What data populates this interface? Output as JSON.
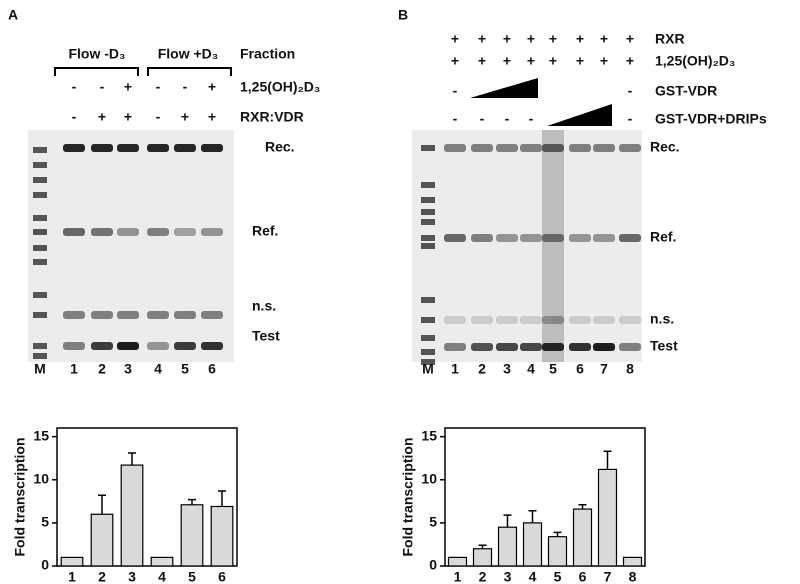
{
  "panels": [
    {
      "letter": "A",
      "headers": [
        "Flow -D₃",
        "Flow +D₃"
      ],
      "fraction_label": "Fraction",
      "rows": [
        {
          "label": "1,25(OH)₂D₃",
          "marks": [
            "-",
            "-",
            "+",
            "-",
            "-",
            "+"
          ]
        },
        {
          "label": "RXR:VDR",
          "marks": [
            "-",
            "+",
            "+",
            "-",
            "+",
            "+"
          ]
        }
      ],
      "bands": [
        "Rec.",
        "Ref.",
        "n.s.",
        "Test"
      ],
      "lane_labels": [
        "M",
        "1",
        "2",
        "3",
        "4",
        "5",
        "6"
      ]
    },
    {
      "letter": "B",
      "rows": [
        {
          "label": "RXR",
          "marks": [
            "+",
            "+",
            "+",
            "+",
            "+",
            "+",
            "+",
            "+"
          ]
        },
        {
          "label": "1,25(OH)₂D₃",
          "marks": [
            "+",
            "+",
            "+",
            "+",
            "+",
            "+",
            "+",
            "+"
          ]
        },
        {
          "label": "GST-VDR",
          "marks": [
            "-",
            "-"
          ]
        },
        {
          "label": "GST-VDR+DRIPs",
          "marks": [
            "-",
            "-",
            "-",
            "-",
            "-"
          ]
        }
      ],
      "bands": [
        "Rec.",
        "Ref.",
        "n.s.",
        "Test"
      ],
      "lane_labels": [
        "M",
        "1",
        "2",
        "3",
        "4",
        "5",
        "6",
        "7",
        "8"
      ]
    }
  ],
  "chart_data": [
    {
      "type": "bar",
      "y_label": "Fold transcription",
      "categories": [
        "1",
        "2",
        "3",
        "4",
        "5",
        "6"
      ],
      "values": [
        1,
        6,
        11.7,
        1,
        7.1,
        6.9
      ],
      "errors": [
        0,
        2.2,
        1.4,
        0,
        0.6,
        1.8
      ],
      "ylim": [
        0,
        16
      ],
      "yticks": [
        0,
        5,
        10,
        15
      ],
      "color": "#d9d9d9"
    },
    {
      "type": "bar",
      "y_label": "Fold transcription",
      "categories": [
        "1",
        "2",
        "3",
        "4",
        "5",
        "6",
        "7",
        "8"
      ],
      "values": [
        1,
        2,
        4.5,
        5,
        3.4,
        6.6,
        11.2,
        1
      ],
      "errors": [
        0,
        0.4,
        1.4,
        1.4,
        0.5,
        0.5,
        2.1,
        0
      ],
      "ylim": [
        0,
        16
      ],
      "yticks": [
        0,
        5,
        10,
        15
      ],
      "color": "#d9d9d9"
    }
  ]
}
